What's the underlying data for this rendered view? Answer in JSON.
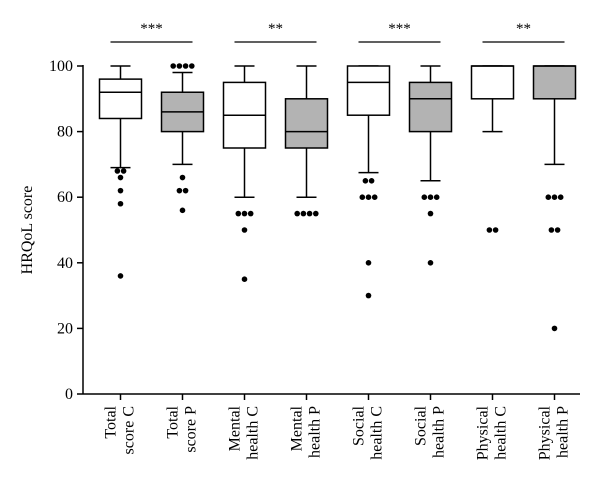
{
  "chart_data": {
    "type": "boxplot",
    "ylabel": "HRQoL score",
    "ylim": [
      0,
      100
    ],
    "yticks": [
      0,
      20,
      40,
      60,
      80,
      100
    ],
    "grid": false,
    "colors": {
      "control": "#ffffff",
      "patient": "#b3b3b3",
      "outline": "#000000"
    },
    "categories": [
      {
        "line1": "Total",
        "line2": "score C"
      },
      {
        "line1": "Total",
        "line2": "score P"
      },
      {
        "line1": "Mental",
        "line2": "health C"
      },
      {
        "line1": "Mental",
        "line2": "health P"
      },
      {
        "line1": "Social",
        "line2": "health C"
      },
      {
        "line1": "Social",
        "line2": "health P"
      },
      {
        "line1": "Physical",
        "line2": "health C"
      },
      {
        "line1": "Physical",
        "line2": "health P"
      }
    ],
    "boxes": [
      {
        "whisker_low": 69,
        "q1": 84,
        "median": 92,
        "q3": 96,
        "whisker_high": 100,
        "outliers": [
          68,
          68,
          66,
          62,
          58,
          36
        ],
        "group": "control"
      },
      {
        "whisker_low": 70,
        "q1": 80,
        "median": 86,
        "q3": 92,
        "whisker_high": 98,
        "outliers": [
          100,
          100,
          100,
          100,
          66,
          62,
          62,
          56
        ],
        "group": "patient"
      },
      {
        "whisker_low": 60,
        "q1": 75,
        "median": 85,
        "q3": 95,
        "whisker_high": 100,
        "outliers": [
          55,
          55,
          55,
          50,
          35
        ],
        "group": "control"
      },
      {
        "whisker_low": 60,
        "q1": 75,
        "median": 80,
        "q3": 90,
        "whisker_high": 100,
        "outliers": [
          55,
          55,
          55,
          55
        ],
        "group": "patient"
      },
      {
        "whisker_low": 67.5,
        "q1": 85,
        "median": 95,
        "q3": 100,
        "whisker_high": 100,
        "outliers": [
          65,
          65,
          60,
          60,
          60,
          40,
          30
        ],
        "group": "control"
      },
      {
        "whisker_low": 65,
        "q1": 80,
        "median": 90,
        "q3": 95,
        "whisker_high": 100,
        "outliers": [
          60,
          60,
          60,
          55,
          40
        ],
        "group": "patient"
      },
      {
        "whisker_low": 80,
        "q1": 90,
        "median": 100,
        "q3": 100,
        "whisker_high": 100,
        "outliers": [
          50,
          50
        ],
        "group": "control"
      },
      {
        "whisker_low": 70,
        "q1": 90,
        "median": 100,
        "q3": 100,
        "whisker_high": 100,
        "outliers": [
          60,
          60,
          60,
          50,
          50,
          20
        ],
        "group": "patient"
      }
    ],
    "significance": [
      {
        "pair": [
          0,
          1
        ],
        "label": "***"
      },
      {
        "pair": [
          2,
          3
        ],
        "label": "**"
      },
      {
        "pair": [
          4,
          5
        ],
        "label": "***"
      },
      {
        "pair": [
          6,
          7
        ],
        "label": "**"
      }
    ]
  }
}
